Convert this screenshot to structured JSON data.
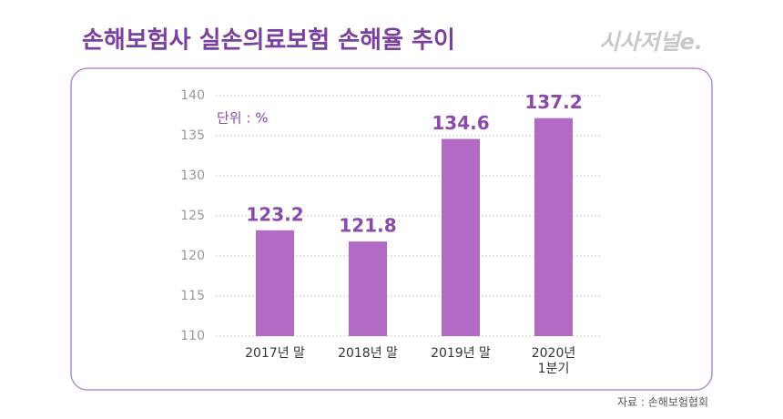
{
  "chart_data": {
    "type": "bar",
    "title": "손해보험사 실손의료보험 손해율 추이",
    "logo": "시사저널e.",
    "unit_note": "단위 : %",
    "source": "자료 : 손해보험협회",
    "categories": [
      "2017년 말",
      "2018년 말",
      "2019년 말",
      "2020년\n1분기"
    ],
    "values": [
      123.2,
      121.8,
      134.6,
      137.2
    ],
    "color": "#b36ac4",
    "ylim": [
      110,
      140
    ],
    "yticks": [
      110,
      115,
      120,
      125,
      130,
      135,
      140
    ],
    "grid": true
  }
}
